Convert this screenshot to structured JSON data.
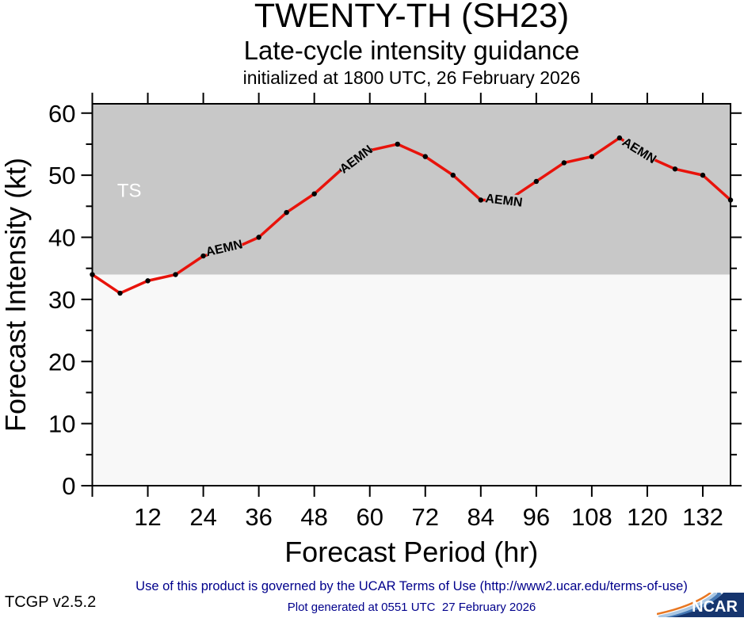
{
  "header": {
    "title": "TWENTY-TH (SH23)",
    "subtitle": "Late-cycle intensity guidance",
    "init_line": "initialized at 1800 UTC, 26 February 2026"
  },
  "chart_data": {
    "type": "line",
    "title": "TWENTY-TH (SH23)",
    "subtitle": "Late-cycle intensity guidance",
    "initialized": "initialized at 1800 UTC, 26 February 2026",
    "xlabel": "Forecast Period (hr)",
    "ylabel": "Forecast Intensity (kt)",
    "xlim": [
      0,
      138
    ],
    "ylim": [
      0,
      61.5
    ],
    "x_ticks": [
      12,
      24,
      36,
      48,
      60,
      72,
      84,
      96,
      108,
      120,
      132
    ],
    "y_ticks_major": [
      0,
      10,
      20,
      30,
      40,
      50,
      60
    ],
    "y_ticks_minor": [
      5,
      15,
      25,
      35,
      45,
      55
    ],
    "grid": false,
    "legend_position": "none",
    "plot_bg": "#f8f8f8",
    "frame_color": "#000000",
    "series": [
      {
        "name": "AEMN",
        "color": "#e8130b",
        "marker_color": "#000000",
        "x": [
          0,
          6,
          12,
          18,
          24,
          30,
          36,
          42,
          48,
          54,
          60,
          66,
          72,
          78,
          84,
          90,
          96,
          102,
          108,
          114,
          120,
          126,
          132,
          138
        ],
        "values": [
          34,
          31,
          33,
          34,
          37,
          38,
          40,
          44,
          47,
          51,
          54,
          55,
          53,
          50,
          46,
          46,
          49,
          52,
          53,
          56,
          53,
          51,
          50,
          46
        ]
      }
    ],
    "threshold_band": {
      "label": "TS",
      "from_kt": 34,
      "color": "#c8c8c8",
      "label_color": "#ffffff",
      "label_pos": {
        "hr": 8,
        "kt": 47.5
      }
    },
    "series_labels": [
      {
        "text": "AEMN",
        "hr": 28.5,
        "kt": 38.3,
        "angle": -13
      },
      {
        "text": "AEMN",
        "hr": 57.0,
        "kt": 52.6,
        "angle": -37
      },
      {
        "text": "AEMN",
        "hr": 89.0,
        "kt": 46.0,
        "angle": 7
      },
      {
        "text": "AEMN",
        "hr": 118.3,
        "kt": 54.0,
        "angle": 32
      }
    ]
  },
  "footer": {
    "terms": "Use of this product is governed by the UCAR Terms of Use (http://www2.ucar.edu/terms-of-use)",
    "terms_color": "#00008b",
    "version": "TCGP v2.5.2",
    "generated": "Plot generated at 0551 UTC  27 February 2026"
  },
  "logo": {
    "text": "NCAR",
    "bg": "#16356e"
  }
}
